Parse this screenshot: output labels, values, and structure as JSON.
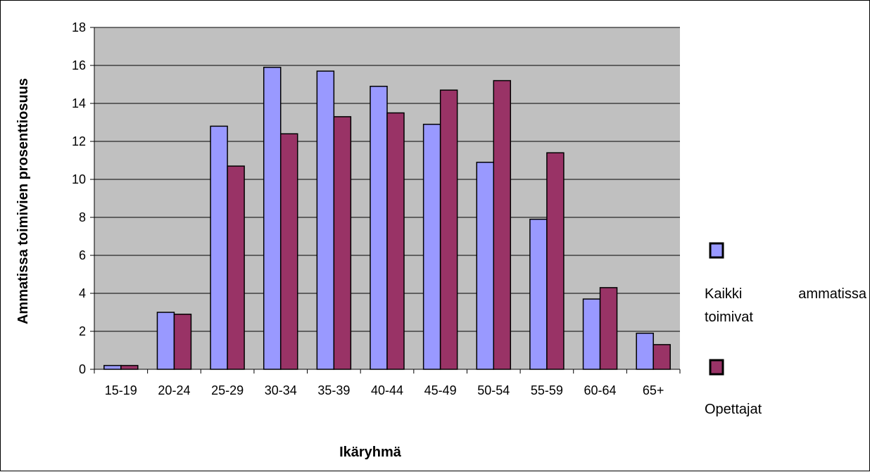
{
  "chart_data": {
    "type": "bar",
    "categories": [
      "15-19",
      "20-24",
      "25-29",
      "30-34",
      "35-39",
      "40-44",
      "45-49",
      "50-54",
      "55-59",
      "60-64",
      "65+"
    ],
    "series": [
      {
        "name": "Kaikki ammatissa toimivat",
        "values": [
          0.2,
          3.0,
          12.8,
          15.9,
          15.7,
          14.9,
          12.9,
          10.9,
          7.9,
          3.7,
          1.9
        ]
      },
      {
        "name": "Opettajat",
        "values": [
          0.2,
          2.9,
          10.7,
          12.4,
          13.3,
          13.5,
          14.7,
          15.2,
          11.4,
          4.3,
          1.3
        ]
      }
    ],
    "xlabel": "Ikäryhmä",
    "ylabel": "Ammatissa toimivien prosenttiosuus",
    "ylim": [
      0,
      18
    ],
    "yticks": [
      0,
      2,
      4,
      6,
      8,
      10,
      12,
      14,
      16,
      18
    ],
    "grid": true,
    "legend_position": "right",
    "colors": {
      "plot_background": "#c0c0c0",
      "series_1": "#9999ff",
      "series_2": "#993366",
      "gridline": "#000000"
    }
  }
}
